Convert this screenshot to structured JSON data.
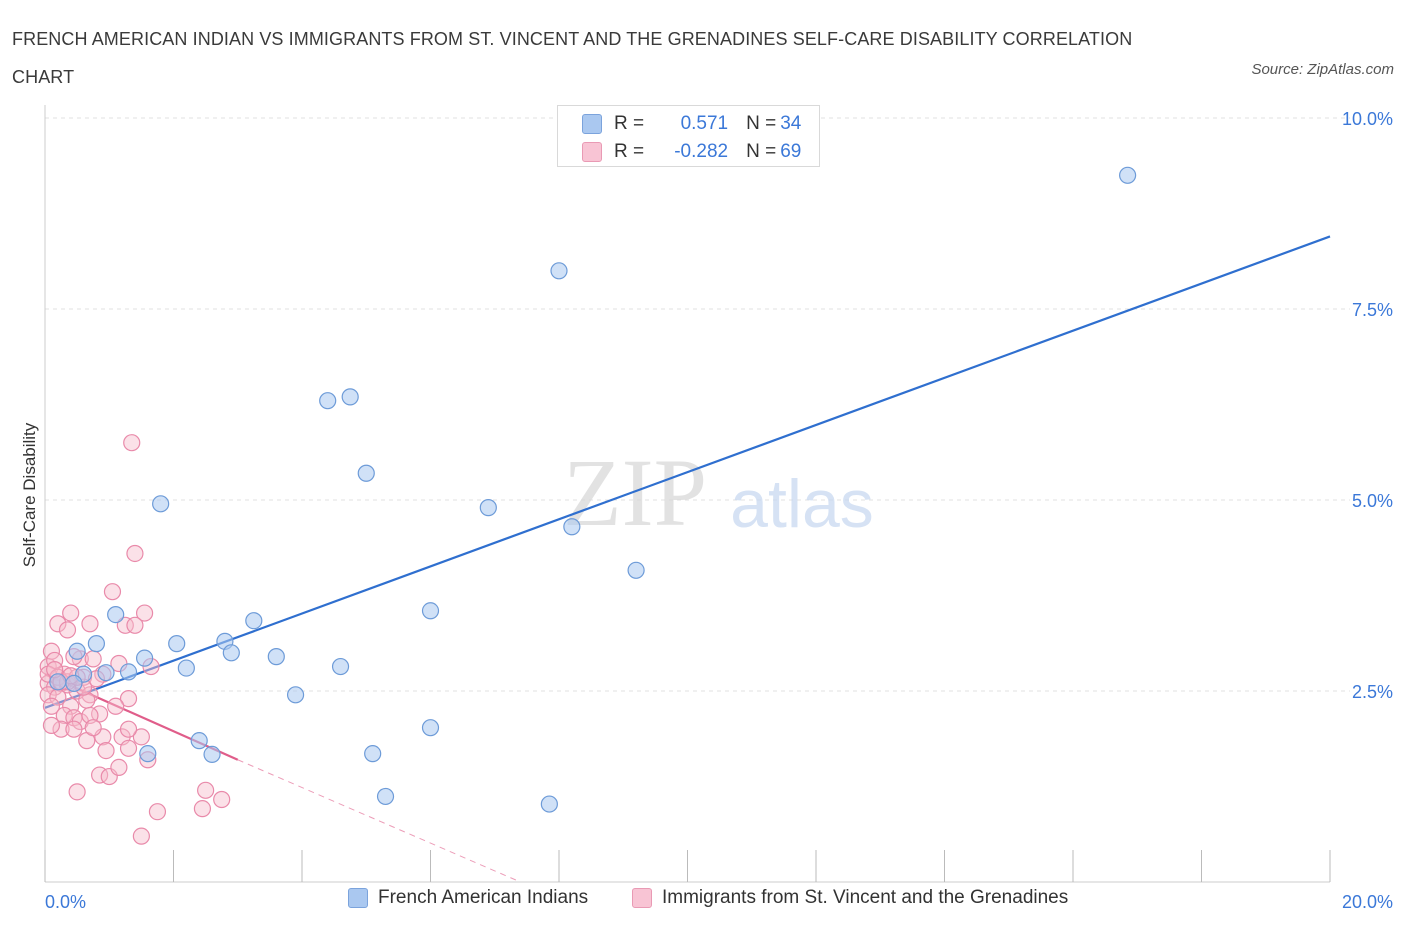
{
  "title": "FRENCH AMERICAN INDIAN VS IMMIGRANTS FROM ST. VINCENT AND THE GRENADINES SELF-CARE DISABILITY CORRELATION CHART",
  "source": "Source: ZipAtlas.com",
  "watermark": {
    "zip": "ZIP",
    "atlas": "atlas"
  },
  "legend_stats": [
    {
      "r_label": "R =",
      "r_value": "0.571",
      "n_label": "N =",
      "n_value": "34",
      "color": "#aac8f0",
      "border": "#7ba3dc"
    },
    {
      "r_label": "R =",
      "r_value": "-0.282",
      "n_label": "N =",
      "n_value": "69",
      "color": "#f8c4d4",
      "border": "#e99ab4"
    }
  ],
  "colors": {
    "blue_fill": "#aac8f0",
    "blue_stroke": "#6d9bd8",
    "blue_line": "#2f6fcf",
    "pink_fill": "#f6bccd",
    "pink_stroke": "#e98aaa",
    "pink_line": "#e05d8a",
    "axis_text": "#3b78d8",
    "grid": "#e2e2e2"
  },
  "chart_data": {
    "type": "scatter",
    "title": "FRENCH AMERICAN INDIAN VS IMMIGRANTS FROM ST. VINCENT AND THE GRENADINES SELF-CARE DISABILITY CORRELATION CHART",
    "xlabel": "",
    "ylabel": "Self-Care Disability",
    "xlim": [
      0,
      20
    ],
    "ylim": [
      0,
      10
    ],
    "x_tick_labels": [
      "0.0%",
      "20.0%"
    ],
    "y_tick_labels": [
      "2.5%",
      "5.0%",
      "7.5%",
      "10.0%"
    ],
    "y_tick_values": [
      2.5,
      5.0,
      7.5,
      10.0
    ],
    "grid": true,
    "legend_position": "bottom",
    "series": [
      {
        "name": "French American Indians",
        "points": [
          [
            16.85,
            9.25
          ],
          [
            8.0,
            8.0
          ],
          [
            4.4,
            6.3
          ],
          [
            4.75,
            6.35
          ],
          [
            5.0,
            5.35
          ],
          [
            1.8,
            4.95
          ],
          [
            6.9,
            4.9
          ],
          [
            8.2,
            4.65
          ],
          [
            9.2,
            4.08
          ],
          [
            6.0,
            3.55
          ],
          [
            1.1,
            3.5
          ],
          [
            3.25,
            3.42
          ],
          [
            0.8,
            3.12
          ],
          [
            2.05,
            3.12
          ],
          [
            2.8,
            3.15
          ],
          [
            0.5,
            3.02
          ],
          [
            2.9,
            3.0
          ],
          [
            3.6,
            2.95
          ],
          [
            1.55,
            2.93
          ],
          [
            4.6,
            2.82
          ],
          [
            2.2,
            2.8
          ],
          [
            0.6,
            2.72
          ],
          [
            1.3,
            2.75
          ],
          [
            0.95,
            2.74
          ],
          [
            0.2,
            2.62
          ],
          [
            3.9,
            2.45
          ],
          [
            2.4,
            1.85
          ],
          [
            2.6,
            1.67
          ],
          [
            1.6,
            1.68
          ],
          [
            5.1,
            1.68
          ],
          [
            6.0,
            2.02
          ],
          [
            5.3,
            1.12
          ],
          [
            7.85,
            1.02
          ],
          [
            0.45,
            2.6
          ]
        ],
        "trend": {
          "x": [
            0.0,
            20.0
          ],
          "y": [
            2.28,
            8.45
          ]
        }
      },
      {
        "name": "Immigrants from St. Vincent and the Grenadines",
        "points": [
          [
            1.35,
            5.75
          ],
          [
            1.4,
            4.3
          ],
          [
            1.05,
            3.8
          ],
          [
            0.4,
            3.52
          ],
          [
            1.55,
            3.52
          ],
          [
            0.2,
            3.38
          ],
          [
            0.35,
            3.3
          ],
          [
            0.7,
            3.38
          ],
          [
            1.25,
            3.36
          ],
          [
            1.4,
            3.36
          ],
          [
            0.1,
            3.02
          ],
          [
            0.55,
            2.92
          ],
          [
            0.45,
            2.95
          ],
          [
            0.75,
            2.92
          ],
          [
            0.9,
            2.72
          ],
          [
            0.05,
            2.82
          ],
          [
            0.15,
            2.9
          ],
          [
            0.3,
            2.72
          ],
          [
            0.6,
            2.68
          ],
          [
            0.8,
            2.66
          ],
          [
            1.15,
            2.86
          ],
          [
            0.05,
            2.6
          ],
          [
            0.15,
            2.55
          ],
          [
            0.25,
            2.6
          ],
          [
            0.35,
            2.58
          ],
          [
            0.5,
            2.5
          ],
          [
            0.7,
            2.45
          ],
          [
            0.05,
            2.45
          ],
          [
            0.2,
            2.42
          ],
          [
            0.4,
            2.3
          ],
          [
            0.65,
            2.38
          ],
          [
            0.85,
            2.2
          ],
          [
            1.3,
            2.4
          ],
          [
            0.1,
            2.3
          ],
          [
            0.3,
            2.18
          ],
          [
            0.45,
            2.15
          ],
          [
            0.55,
            2.1
          ],
          [
            0.7,
            2.18
          ],
          [
            1.1,
            2.3
          ],
          [
            0.25,
            2.0
          ],
          [
            0.45,
            2.0
          ],
          [
            0.65,
            1.85
          ],
          [
            0.9,
            1.9
          ],
          [
            1.2,
            1.9
          ],
          [
            1.5,
            1.9
          ],
          [
            0.95,
            1.72
          ],
          [
            1.3,
            1.75
          ],
          [
            1.6,
            1.6
          ],
          [
            0.85,
            1.4
          ],
          [
            1.0,
            1.38
          ],
          [
            1.15,
            1.5
          ],
          [
            2.5,
            1.2
          ],
          [
            2.75,
            1.08
          ],
          [
            2.45,
            0.96
          ],
          [
            1.75,
            0.92
          ],
          [
            0.5,
            1.18
          ],
          [
            1.5,
            0.6
          ],
          [
            0.05,
            2.72
          ],
          [
            0.2,
            2.68
          ],
          [
            0.35,
            2.62
          ],
          [
            1.3,
            2.0
          ],
          [
            0.6,
            2.55
          ],
          [
            0.1,
            2.05
          ],
          [
            0.75,
            2.02
          ],
          [
            1.65,
            2.82
          ],
          [
            0.25,
            2.62
          ],
          [
            0.5,
            2.68
          ],
          [
            0.15,
            2.78
          ],
          [
            0.4,
            2.7
          ]
        ],
        "trend": {
          "x": [
            0.0,
            3.0
          ],
          "y": [
            2.72,
            1.6
          ]
        },
        "trend_extension": {
          "x": [
            3.0,
            7.4
          ],
          "y": [
            1.6,
            0.0
          ]
        }
      }
    ]
  }
}
